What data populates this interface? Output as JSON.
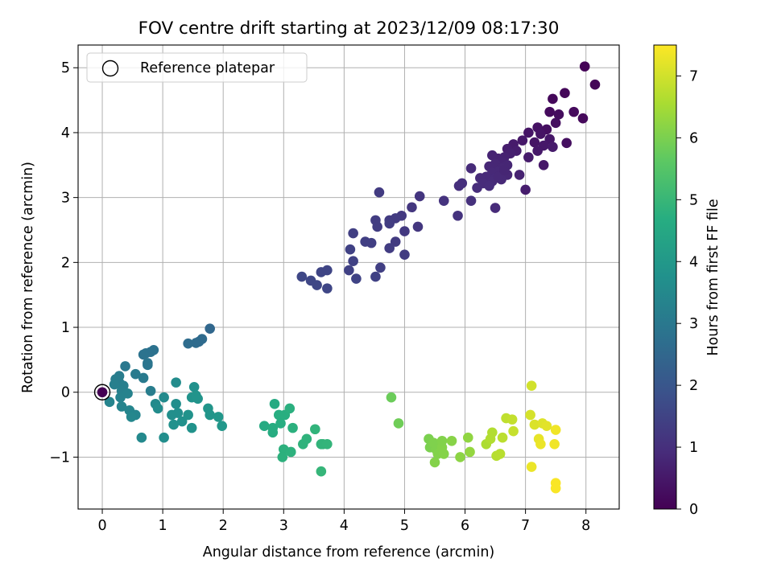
{
  "chart_data": {
    "type": "scatter",
    "title": "FOV centre drift starting at 2023/12/09 08:17:30",
    "xlabel": "Angular distance from reference (arcmin)",
    "ylabel": "Rotation from reference (arcmin)",
    "xlim": [
      -0.4,
      8.55
    ],
    "ylim": [
      -1.8,
      5.35
    ],
    "xticks": [
      0,
      1,
      2,
      3,
      4,
      5,
      6,
      7,
      8
    ],
    "yticks": [
      -1,
      0,
      1,
      2,
      3,
      4,
      5
    ],
    "grid": true,
    "legend": {
      "placement": "top-left",
      "entries": [
        "Reference platepar"
      ]
    },
    "reference_point": {
      "x": 0,
      "y": 0,
      "label": "Reference platepar",
      "marker": "hollow-circle"
    },
    "colorbar": {
      "label": "Hours from first FF file",
      "colormap": "viridis",
      "range": [
        0,
        7.5
      ],
      "ticks": [
        0,
        1,
        2,
        3,
        4,
        5,
        6,
        7
      ]
    },
    "points": [
      {
        "x": 0.0,
        "y": 0.0,
        "c": 0.0
      },
      {
        "x": 7.98,
        "y": 5.02,
        "c": 0.05
      },
      {
        "x": 8.15,
        "y": 4.74,
        "c": 0.1
      },
      {
        "x": 7.65,
        "y": 4.61,
        "c": 0.12
      },
      {
        "x": 7.45,
        "y": 4.52,
        "c": 0.15
      },
      {
        "x": 7.8,
        "y": 4.32,
        "c": 0.2
      },
      {
        "x": 7.4,
        "y": 4.32,
        "c": 0.22
      },
      {
        "x": 7.55,
        "y": 4.28,
        "c": 0.25
      },
      {
        "x": 7.95,
        "y": 4.22,
        "c": 0.18
      },
      {
        "x": 7.5,
        "y": 4.15,
        "c": 0.3
      },
      {
        "x": 7.2,
        "y": 4.08,
        "c": 0.35
      },
      {
        "x": 7.35,
        "y": 4.05,
        "c": 0.3
      },
      {
        "x": 7.05,
        "y": 4.0,
        "c": 0.4
      },
      {
        "x": 7.25,
        "y": 3.98,
        "c": 0.38
      },
      {
        "x": 7.4,
        "y": 3.9,
        "c": 0.45
      },
      {
        "x": 6.95,
        "y": 3.88,
        "c": 0.5
      },
      {
        "x": 7.15,
        "y": 3.85,
        "c": 0.42
      },
      {
        "x": 7.68,
        "y": 3.84,
        "c": 0.3
      },
      {
        "x": 7.3,
        "y": 3.8,
        "c": 0.5
      },
      {
        "x": 7.45,
        "y": 3.78,
        "c": 0.55
      },
      {
        "x": 6.8,
        "y": 3.82,
        "c": 0.55
      },
      {
        "x": 6.7,
        "y": 3.75,
        "c": 0.6
      },
      {
        "x": 6.85,
        "y": 3.72,
        "c": 0.6
      },
      {
        "x": 6.75,
        "y": 3.68,
        "c": 0.65
      },
      {
        "x": 7.2,
        "y": 3.72,
        "c": 0.5
      },
      {
        "x": 6.65,
        "y": 3.62,
        "c": 0.7
      },
      {
        "x": 6.55,
        "y": 3.6,
        "c": 0.72
      },
      {
        "x": 6.45,
        "y": 3.65,
        "c": 0.75
      },
      {
        "x": 6.6,
        "y": 3.55,
        "c": 0.75
      },
      {
        "x": 7.05,
        "y": 3.62,
        "c": 0.55
      },
      {
        "x": 6.5,
        "y": 3.52,
        "c": 0.8
      },
      {
        "x": 6.7,
        "y": 3.5,
        "c": 0.78
      },
      {
        "x": 7.3,
        "y": 3.5,
        "c": 0.48
      },
      {
        "x": 6.4,
        "y": 3.48,
        "c": 0.82
      },
      {
        "x": 6.6,
        "y": 3.45,
        "c": 0.8
      },
      {
        "x": 6.55,
        "y": 3.4,
        "c": 0.85
      },
      {
        "x": 6.1,
        "y": 3.45,
        "c": 0.9
      },
      {
        "x": 6.45,
        "y": 3.38,
        "c": 0.85
      },
      {
        "x": 6.7,
        "y": 3.35,
        "c": 0.8
      },
      {
        "x": 6.35,
        "y": 3.32,
        "c": 0.88
      },
      {
        "x": 6.25,
        "y": 3.3,
        "c": 0.9
      },
      {
        "x": 6.9,
        "y": 3.35,
        "c": 0.7
      },
      {
        "x": 6.6,
        "y": 3.28,
        "c": 0.85
      },
      {
        "x": 6.5,
        "y": 3.3,
        "c": 0.88
      },
      {
        "x": 6.45,
        "y": 3.25,
        "c": 0.9
      },
      {
        "x": 6.3,
        "y": 3.22,
        "c": 0.92
      },
      {
        "x": 6.4,
        "y": 3.18,
        "c": 0.95
      },
      {
        "x": 6.2,
        "y": 3.15,
        "c": 0.95
      },
      {
        "x": 5.95,
        "y": 3.22,
        "c": 1.0
      },
      {
        "x": 5.9,
        "y": 3.18,
        "c": 1.0
      },
      {
        "x": 7.0,
        "y": 3.12,
        "c": 0.6
      },
      {
        "x": 6.55,
        "y": 3.32,
        "c": 0.85
      },
      {
        "x": 6.65,
        "y": 3.42,
        "c": 0.78
      },
      {
        "x": 6.1,
        "y": 2.95,
        "c": 1.05
      },
      {
        "x": 5.65,
        "y": 2.95,
        "c": 1.1
      },
      {
        "x": 5.25,
        "y": 3.02,
        "c": 1.15
      },
      {
        "x": 6.5,
        "y": 2.84,
        "c": 0.9
      },
      {
        "x": 5.88,
        "y": 2.72,
        "c": 1.1
      },
      {
        "x": 5.12,
        "y": 2.85,
        "c": 1.2
      },
      {
        "x": 4.58,
        "y": 3.08,
        "c": 1.3
      },
      {
        "x": 4.95,
        "y": 2.72,
        "c": 1.25
      },
      {
        "x": 4.85,
        "y": 2.68,
        "c": 1.3
      },
      {
        "x": 4.75,
        "y": 2.65,
        "c": 1.3
      },
      {
        "x": 4.52,
        "y": 2.65,
        "c": 1.35
      },
      {
        "x": 4.75,
        "y": 2.6,
        "c": 1.35
      },
      {
        "x": 4.55,
        "y": 2.55,
        "c": 1.35
      },
      {
        "x": 5.22,
        "y": 2.55,
        "c": 1.2
      },
      {
        "x": 5.0,
        "y": 2.48,
        "c": 1.25
      },
      {
        "x": 4.15,
        "y": 2.45,
        "c": 1.4
      },
      {
        "x": 4.35,
        "y": 2.32,
        "c": 1.4
      },
      {
        "x": 4.45,
        "y": 2.3,
        "c": 1.4
      },
      {
        "x": 4.85,
        "y": 2.32,
        "c": 1.3
      },
      {
        "x": 4.75,
        "y": 2.22,
        "c": 1.35
      },
      {
        "x": 4.1,
        "y": 2.2,
        "c": 1.45
      },
      {
        "x": 5.0,
        "y": 2.12,
        "c": 1.3
      },
      {
        "x": 4.15,
        "y": 2.02,
        "c": 1.45
      },
      {
        "x": 4.6,
        "y": 1.92,
        "c": 1.4
      },
      {
        "x": 4.08,
        "y": 1.88,
        "c": 1.45
      },
      {
        "x": 4.52,
        "y": 1.78,
        "c": 1.45
      },
      {
        "x": 4.2,
        "y": 1.75,
        "c": 1.5
      },
      {
        "x": 3.72,
        "y": 1.88,
        "c": 1.55
      },
      {
        "x": 3.62,
        "y": 1.85,
        "c": 1.55
      },
      {
        "x": 3.3,
        "y": 1.78,
        "c": 1.6
      },
      {
        "x": 3.45,
        "y": 1.72,
        "c": 1.6
      },
      {
        "x": 3.55,
        "y": 1.65,
        "c": 1.6
      },
      {
        "x": 3.72,
        "y": 1.6,
        "c": 1.58
      },
      {
        "x": 1.78,
        "y": 0.98,
        "c": 2.5
      },
      {
        "x": 1.65,
        "y": 0.82,
        "c": 2.6
      },
      {
        "x": 1.6,
        "y": 0.78,
        "c": 2.6
      },
      {
        "x": 1.55,
        "y": 0.76,
        "c": 2.62
      },
      {
        "x": 1.42,
        "y": 0.75,
        "c": 2.65
      },
      {
        "x": 0.85,
        "y": 0.65,
        "c": 2.8
      },
      {
        "x": 0.8,
        "y": 0.62,
        "c": 2.8
      },
      {
        "x": 0.72,
        "y": 0.6,
        "c": 2.82
      },
      {
        "x": 0.68,
        "y": 0.58,
        "c": 2.85
      },
      {
        "x": 0.75,
        "y": 0.45,
        "c": 2.9
      },
      {
        "x": 0.75,
        "y": 0.42,
        "c": 2.9
      },
      {
        "x": 0.38,
        "y": 0.4,
        "c": 3.0
      },
      {
        "x": 0.55,
        "y": 0.28,
        "c": 3.05
      },
      {
        "x": 0.28,
        "y": 0.25,
        "c": 3.1
      },
      {
        "x": 0.22,
        "y": 0.2,
        "c": 3.15
      },
      {
        "x": 0.68,
        "y": 0.22,
        "c": 3.05
      },
      {
        "x": 0.28,
        "y": 0.15,
        "c": 3.15
      },
      {
        "x": 0.35,
        "y": 0.1,
        "c": 3.2
      },
      {
        "x": 0.2,
        "y": 0.12,
        "c": 3.2
      },
      {
        "x": 0.32,
        "y": 0.02,
        "c": 3.25
      },
      {
        "x": 0.8,
        "y": 0.02,
        "c": 3.15
      },
      {
        "x": 0.42,
        "y": -0.02,
        "c": 3.3
      },
      {
        "x": 0.3,
        "y": -0.08,
        "c": 3.3
      },
      {
        "x": 0.12,
        "y": -0.15,
        "c": 3.35
      },
      {
        "x": 0.32,
        "y": -0.22,
        "c": 3.35
      },
      {
        "x": 0.45,
        "y": -0.28,
        "c": 3.4
      },
      {
        "x": 0.55,
        "y": -0.35,
        "c": 3.4
      },
      {
        "x": 0.48,
        "y": -0.38,
        "c": 3.45
      },
      {
        "x": 0.65,
        "y": -0.7,
        "c": 3.5
      },
      {
        "x": 1.02,
        "y": -0.08,
        "c": 3.55
      },
      {
        "x": 0.88,
        "y": -0.18,
        "c": 3.55
      },
      {
        "x": 0.92,
        "y": -0.25,
        "c": 3.6
      },
      {
        "x": 1.02,
        "y": -0.7,
        "c": 3.65
      },
      {
        "x": 1.22,
        "y": 0.15,
        "c": 3.6
      },
      {
        "x": 1.22,
        "y": -0.18,
        "c": 3.65
      },
      {
        "x": 1.15,
        "y": -0.35,
        "c": 3.7
      },
      {
        "x": 1.25,
        "y": -0.32,
        "c": 3.7
      },
      {
        "x": 1.18,
        "y": -0.5,
        "c": 3.75
      },
      {
        "x": 1.32,
        "y": -0.45,
        "c": 3.75
      },
      {
        "x": 1.42,
        "y": -0.35,
        "c": 3.8
      },
      {
        "x": 1.48,
        "y": -0.55,
        "c": 3.8
      },
      {
        "x": 1.52,
        "y": 0.08,
        "c": 3.75
      },
      {
        "x": 1.48,
        "y": -0.08,
        "c": 3.82
      },
      {
        "x": 1.55,
        "y": -0.05,
        "c": 3.85
      },
      {
        "x": 1.58,
        "y": -0.1,
        "c": 3.85
      },
      {
        "x": 1.75,
        "y": -0.25,
        "c": 3.9
      },
      {
        "x": 1.78,
        "y": -0.35,
        "c": 3.9
      },
      {
        "x": 1.92,
        "y": -0.38,
        "c": 3.95
      },
      {
        "x": 1.98,
        "y": -0.52,
        "c": 3.95
      },
      {
        "x": 2.68,
        "y": -0.52,
        "c": 4.6
      },
      {
        "x": 2.82,
        "y": -0.55,
        "c": 4.65
      },
      {
        "x": 2.82,
        "y": -0.62,
        "c": 4.65
      },
      {
        "x": 2.85,
        "y": -0.18,
        "c": 4.6
      },
      {
        "x": 2.92,
        "y": -0.35,
        "c": 4.7
      },
      {
        "x": 2.95,
        "y": -0.48,
        "c": 4.7
      },
      {
        "x": 3.02,
        "y": -0.35,
        "c": 4.72
      },
      {
        "x": 3.1,
        "y": -0.25,
        "c": 4.75
      },
      {
        "x": 3.15,
        "y": -0.55,
        "c": 4.78
      },
      {
        "x": 3.0,
        "y": -0.88,
        "c": 4.8
      },
      {
        "x": 2.98,
        "y": -1.0,
        "c": 4.8
      },
      {
        "x": 3.12,
        "y": -0.92,
        "c": 4.82
      },
      {
        "x": 3.32,
        "y": -0.8,
        "c": 4.85
      },
      {
        "x": 3.38,
        "y": -0.72,
        "c": 4.85
      },
      {
        "x": 3.52,
        "y": -0.57,
        "c": 4.88
      },
      {
        "x": 3.62,
        "y": -0.8,
        "c": 4.9
      },
      {
        "x": 3.65,
        "y": -0.8,
        "c": 4.9
      },
      {
        "x": 3.72,
        "y": -0.8,
        "c": 4.92
      },
      {
        "x": 3.62,
        "y": -1.22,
        "c": 4.95
      },
      {
        "x": 4.78,
        "y": -0.08,
        "c": 5.8
      },
      {
        "x": 4.9,
        "y": -0.48,
        "c": 5.85
      },
      {
        "x": 5.4,
        "y": -0.72,
        "c": 6.0
      },
      {
        "x": 5.42,
        "y": -0.85,
        "c": 6.0
      },
      {
        "x": 5.48,
        "y": -0.78,
        "c": 6.05
      },
      {
        "x": 5.52,
        "y": -0.88,
        "c": 6.05
      },
      {
        "x": 5.55,
        "y": -0.95,
        "c": 6.08
      },
      {
        "x": 5.5,
        "y": -1.08,
        "c": 6.1
      },
      {
        "x": 5.62,
        "y": -0.85,
        "c": 6.1
      },
      {
        "x": 5.65,
        "y": -0.95,
        "c": 6.12
      },
      {
        "x": 5.62,
        "y": -0.75,
        "c": 6.08
      },
      {
        "x": 5.78,
        "y": -0.75,
        "c": 6.15
      },
      {
        "x": 5.92,
        "y": -1.0,
        "c": 6.2
      },
      {
        "x": 6.05,
        "y": -0.7,
        "c": 6.25
      },
      {
        "x": 6.08,
        "y": -0.92,
        "c": 6.3
      },
      {
        "x": 6.35,
        "y": -0.8,
        "c": 6.6
      },
      {
        "x": 6.42,
        "y": -0.72,
        "c": 6.65
      },
      {
        "x": 6.45,
        "y": -0.62,
        "c": 6.65
      },
      {
        "x": 6.52,
        "y": -0.98,
        "c": 6.7
      },
      {
        "x": 6.58,
        "y": -0.95,
        "c": 6.72
      },
      {
        "x": 6.62,
        "y": -0.7,
        "c": 6.75
      },
      {
        "x": 6.68,
        "y": -0.4,
        "c": 6.8
      },
      {
        "x": 6.78,
        "y": -0.42,
        "c": 6.85
      },
      {
        "x": 6.8,
        "y": -0.6,
        "c": 6.88
      },
      {
        "x": 7.1,
        "y": 0.1,
        "c": 7.0
      },
      {
        "x": 7.08,
        "y": -0.35,
        "c": 7.05
      },
      {
        "x": 7.15,
        "y": -0.5,
        "c": 7.1
      },
      {
        "x": 7.28,
        "y": -0.48,
        "c": 7.15
      },
      {
        "x": 7.35,
        "y": -0.52,
        "c": 7.2
      },
      {
        "x": 7.22,
        "y": -0.72,
        "c": 7.25
      },
      {
        "x": 7.25,
        "y": -0.8,
        "c": 7.3
      },
      {
        "x": 7.5,
        "y": -0.58,
        "c": 7.35
      },
      {
        "x": 7.48,
        "y": -0.8,
        "c": 7.35
      },
      {
        "x": 7.1,
        "y": -1.15,
        "c": 7.3
      },
      {
        "x": 7.5,
        "y": -1.4,
        "c": 7.45
      },
      {
        "x": 7.5,
        "y": -1.48,
        "c": 7.45
      }
    ]
  }
}
